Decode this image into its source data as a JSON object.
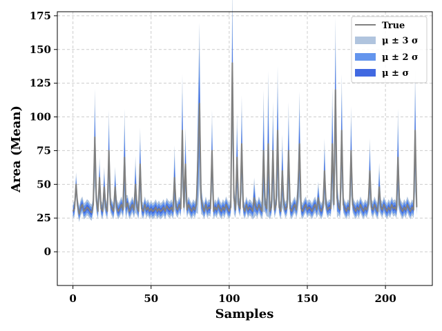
{
  "chart_data": {
    "type": "area",
    "title": "",
    "xlabel": "Samples",
    "ylabel": "Area (Mean)",
    "xlim": [
      -10,
      230
    ],
    "ylim": [
      -25,
      178
    ],
    "xticks": [
      0,
      50,
      100,
      150,
      200
    ],
    "yticks": [
      0,
      25,
      50,
      75,
      100,
      125,
      150,
      175
    ],
    "grid": true,
    "legend_placement": "top-right",
    "colors": {
      "true_line": "#808080",
      "band3": "#b0c4de",
      "band2": "#6495ed",
      "band1": "#4169e1"
    },
    "legend": [
      {
        "key": "true",
        "label": "True"
      },
      {
        "key": "band3",
        "label": "μ ± 3 σ"
      },
      {
        "key": "band2",
        "label": "μ ± 2 σ"
      },
      {
        "key": "band1",
        "label": "μ ±  σ"
      }
    ],
    "x_start": 0,
    "x_step": 1,
    "mean": [
      30,
      32,
      50,
      34,
      28,
      33,
      35,
      30,
      31,
      33,
      32,
      30,
      29,
      35,
      85,
      38,
      30,
      55,
      32,
      30,
      48,
      33,
      30,
      75,
      35,
      32,
      30,
      48,
      33,
      30,
      32,
      35,
      31,
      70,
      33,
      36,
      30,
      32,
      35,
      31,
      50,
      33,
      30,
      65,
      32,
      30,
      35,
      31,
      33,
      30,
      32,
      30,
      31,
      33,
      30,
      32,
      30,
      31,
      33,
      30,
      34,
      32,
      31,
      33,
      30,
      55,
      33,
      31,
      35,
      32,
      90,
      33,
      65,
      31,
      35,
      32,
      30,
      33,
      31,
      35,
      70,
      110,
      40,
      33,
      30,
      35,
      31,
      33,
      32,
      75,
      30,
      33,
      31,
      35,
      32,
      30,
      33,
      31,
      35,
      32,
      30,
      33,
      140,
      40,
      31,
      70,
      35,
      32,
      80,
      33,
      30,
      35,
      31,
      33,
      32,
      30,
      40,
      33,
      31,
      35,
      32,
      30,
      75,
      35,
      32,
      80,
      30,
      33,
      75,
      31,
      35,
      90,
      33,
      30,
      60,
      35,
      31,
      33,
      75,
      32,
      30,
      33,
      35,
      31,
      45,
      80,
      32,
      30,
      33,
      35,
      31,
      33,
      32,
      30,
      33,
      35,
      31,
      40,
      32,
      30,
      33,
      60,
      35,
      31,
      33,
      32,
      80,
      35,
      120,
      40,
      33,
      31,
      90,
      35,
      32,
      30,
      33,
      31,
      75,
      35,
      32,
      30,
      33,
      31,
      35,
      32,
      30,
      33,
      31,
      35,
      60,
      33,
      31,
      35,
      32,
      30,
      48,
      33,
      31,
      35,
      32,
      30,
      33,
      31,
      35,
      32,
      33,
      31,
      70,
      35,
      32,
      30,
      33,
      31,
      35,
      32,
      30,
      33,
      31,
      90,
      33
    ],
    "sigma": [
      2,
      2,
      3,
      2,
      2,
      2,
      2,
      2,
      2,
      2,
      2,
      2,
      2,
      2,
      12,
      3,
      2,
      5,
      2,
      2,
      5,
      2,
      2,
      10,
      2,
      2,
      2,
      5,
      2,
      2,
      2,
      2,
      2,
      12,
      3,
      2,
      2,
      2,
      2,
      2,
      7,
      2,
      2,
      9,
      2,
      2,
      2,
      2,
      2,
      2,
      2,
      2,
      2,
      2,
      2,
      2,
      2,
      2,
      2,
      2,
      2,
      2,
      2,
      2,
      2,
      8,
      2,
      2,
      2,
      2,
      14,
      2,
      9,
      2,
      2,
      2,
      2,
      2,
      2,
      2,
      14,
      20,
      4,
      2,
      2,
      2,
      2,
      2,
      2,
      10,
      2,
      2,
      2,
      2,
      2,
      2,
      2,
      2,
      2,
      2,
      2,
      2,
      20,
      4,
      2,
      11,
      2,
      2,
      12,
      2,
      2,
      2,
      2,
      2,
      2,
      2,
      5,
      2,
      2,
      2,
      2,
      2,
      15,
      2,
      2,
      18,
      2,
      2,
      12,
      2,
      2,
      16,
      2,
      2,
      9,
      2,
      2,
      2,
      12,
      2,
      2,
      2,
      2,
      2,
      5,
      13,
      2,
      2,
      2,
      2,
      2,
      2,
      2,
      2,
      2,
      2,
      2,
      4,
      2,
      2,
      2,
      8,
      2,
      2,
      2,
      2,
      14,
      2,
      18,
      5,
      2,
      2,
      14,
      2,
      2,
      2,
      2,
      2,
      11,
      2,
      2,
      2,
      2,
      2,
      2,
      2,
      2,
      2,
      2,
      2,
      8,
      2,
      2,
      2,
      2,
      2,
      6,
      2,
      2,
      2,
      2,
      2,
      2,
      2,
      2,
      2,
      2,
      2,
      12,
      2,
      2,
      2,
      2,
      2,
      2,
      2,
      2,
      2,
      2,
      15,
      2
    ]
  }
}
